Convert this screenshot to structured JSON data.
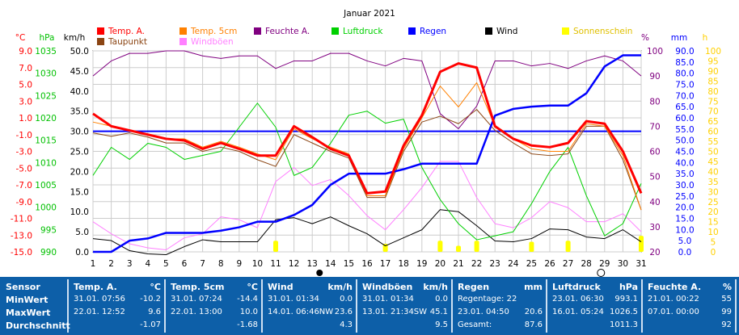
{
  "chart_data": {
    "type": "line",
    "title": "Januar 2021",
    "x": [
      1,
      2,
      3,
      4,
      5,
      6,
      7,
      8,
      9,
      10,
      11,
      12,
      13,
      14,
      15,
      16,
      17,
      18,
      19,
      20,
      21,
      22,
      23,
      24,
      25,
      26,
      27,
      28,
      29,
      30,
      31
    ],
    "axes": {
      "temp_c": {
        "label": "°C",
        "ticks": [
          "9.0",
          "7.0",
          "5.0",
          "3.0",
          "1.0",
          "-1.0",
          "-3.0",
          "-5.0",
          "-7.0",
          "-9.0",
          "-11.0",
          "-13.0",
          "-15.0"
        ],
        "range": [
          -15,
          9
        ],
        "color": "#ff0000"
      },
      "hpa": {
        "label": "hPa",
        "ticks": [
          "1035",
          "1030",
          "1025",
          "1020",
          "1015",
          "1010",
          "1005",
          "1000",
          "995",
          "990"
        ],
        "range": [
          990,
          1040
        ],
        "color": "#00c000"
      },
      "kmh": {
        "label": "km/h",
        "ticks": [
          "50.0",
          "45.0",
          "40.0",
          "35.0",
          "30.0",
          "25.0",
          "20.0",
          "15.0",
          "10.0",
          "5.0",
          "0.0"
        ],
        "range": [
          0,
          50
        ],
        "color": "#000000"
      },
      "pct": {
        "label": "%",
        "ticks": [
          "100",
          "90",
          "80",
          "70",
          "60",
          "50",
          "40",
          "30",
          "20"
        ],
        "range": [
          20,
          100
        ],
        "color": "#800080"
      },
      "mm": {
        "label": "mm",
        "ticks": [
          "90.0",
          "85.0",
          "80.0",
          "75.0",
          "70.0",
          "65.0",
          "60.0",
          "55.0",
          "50.0",
          "45.0",
          "40.0",
          "35.0",
          "30.0",
          "25.0",
          "20.0",
          "15.0",
          "10.0",
          "5.0",
          "0.0"
        ],
        "range": [
          0,
          90
        ],
        "color": "#0000ff"
      },
      "h": {
        "label": "h",
        "ticks": [
          "100",
          "95",
          "90",
          "85",
          "80",
          "75",
          "70",
          "65",
          "60",
          "55",
          "50",
          "45",
          "40",
          "35",
          "30",
          "25",
          "20",
          "15",
          "10",
          "5",
          "0"
        ],
        "range": [
          0,
          100
        ],
        "color": "#ffd000"
      }
    },
    "legend": [
      {
        "name": "Temp. A.",
        "color": "#ff0000"
      },
      {
        "name": "Temp. 5cm",
        "color": "#ff8000"
      },
      {
        "name": "Feuchte A.",
        "color": "#800080"
      },
      {
        "name": "Luftdruck",
        "color": "#00d000"
      },
      {
        "name": "Regen",
        "color": "#0000ff"
      },
      {
        "name": "Wind",
        "color": "#000000"
      },
      {
        "name": "Sonnenschein",
        "color": "#ffff00"
      },
      {
        "name": "Taupunkt",
        "color": "#8b4513"
      },
      {
        "name": "Windböen",
        "color": "#ff80ff"
      }
    ],
    "series": [
      {
        "name": "Temp. A.",
        "axis": "temp_c",
        "color": "#ff0000",
        "width": 3,
        "values": [
          1.5,
          0.0,
          -0.5,
          -1.0,
          -1.5,
          -1.7,
          -2.7,
          -2.0,
          -2.7,
          -3.5,
          -3.5,
          0.0,
          -1.3,
          -2.7,
          -3.5,
          -8.0,
          -7.8,
          -2.3,
          1.3,
          6.5,
          7.5,
          7.0,
          0.0,
          -1.5,
          -2.3,
          -2.5,
          -2.0,
          0.6,
          0.3,
          -3.0,
          -8.0
        ]
      },
      {
        "name": "Temp. 5cm",
        "axis": "temp_c",
        "color": "#ff8000",
        "width": 1,
        "values": [
          0.5,
          0.0,
          -0.5,
          -1.0,
          -1.5,
          -1.5,
          -2.5,
          -1.8,
          -2.5,
          -3.3,
          -4.0,
          -0.3,
          -1.5,
          -2.5,
          -3.3,
          -8.3,
          -8.3,
          -2.7,
          1.0,
          4.8,
          2.3,
          5.2,
          0.0,
          -1.5,
          -2.7,
          -3.0,
          -3.0,
          0.3,
          0.0,
          -3.5,
          -10.0
        ]
      },
      {
        "name": "Taupunkt",
        "axis": "temp_c",
        "color": "#8b4513",
        "width": 1,
        "values": [
          -0.8,
          -1.2,
          -0.8,
          -1.3,
          -2.0,
          -2.0,
          -3.0,
          -2.5,
          -3.0,
          -4.0,
          -4.8,
          -1.0,
          -2.0,
          -3.0,
          -3.8,
          -8.5,
          -8.5,
          -3.0,
          0.5,
          1.2,
          0.3,
          2.0,
          -0.5,
          -2.0,
          -3.3,
          -3.5,
          -3.3,
          0.0,
          0.0,
          -4.0,
          -10.0
        ]
      },
      {
        "name": "Luftdruck",
        "axis": "hpa",
        "color": "#00d000",
        "width": 1,
        "values": [
          1009,
          1016,
          1013,
          1017,
          1016,
          1013,
          1014,
          1015,
          1021,
          1027,
          1021,
          1009,
          1011,
          1017,
          1024,
          1025,
          1022,
          1023,
          1011,
          1003,
          997,
          993,
          994,
          995,
          1002,
          1010,
          1016,
          1004,
          994,
          997,
          1007
        ]
      },
      {
        "name": "Feuchte A.",
        "axis": "pct",
        "color": "#800080",
        "width": 1,
        "values": [
          90,
          96,
          99,
          99,
          100,
          100,
          98,
          97,
          98,
          98,
          93,
          96,
          96,
          99,
          99,
          96,
          94,
          97,
          96,
          75,
          69,
          78,
          96,
          96,
          94,
          95,
          93,
          96,
          98,
          96,
          90
        ]
      },
      {
        "name": "Regen",
        "axis": "mm",
        "color": "#0000ff",
        "width": 2.5,
        "values": [
          0,
          0,
          5.0,
          6.0,
          8.5,
          8.5,
          8.5,
          9.5,
          11.0,
          13.5,
          13.5,
          16.5,
          21.0,
          30.0,
          35.0,
          35.0,
          35.0,
          37.0,
          39.5,
          39.5,
          39.5,
          39.5,
          61.0,
          64.0,
          65.0,
          65.5,
          65.5,
          71.0,
          83.0,
          88.0,
          88.0
        ]
      },
      {
        "name": "Wind",
        "axis": "kmh",
        "color": "#000000",
        "width": 1,
        "values": [
          3.3,
          2.8,
          0.3,
          -0.5,
          -0.7,
          1.3,
          3.0,
          2.5,
          2.5,
          2.5,
          8.0,
          8.5,
          7.0,
          8.7,
          6.5,
          4.5,
          1.5,
          3.5,
          5.5,
          10.5,
          10.0,
          6.5,
          2.7,
          2.5,
          3.3,
          5.7,
          5.5,
          3.7,
          3.3,
          5.5,
          2.5
        ]
      },
      {
        "name": "Windböen",
        "axis": "kmh",
        "color": "#ff80ff",
        "width": 1,
        "values": [
          7.5,
          4.5,
          2.0,
          1.0,
          0.5,
          3.5,
          4.5,
          8.7,
          8.0,
          6.0,
          17.5,
          21.0,
          16.5,
          18.0,
          14.0,
          9.0,
          5.5,
          10.5,
          16.0,
          22.5,
          22.5,
          13.5,
          7.0,
          6.0,
          8.5,
          12.5,
          11.0,
          7.5,
          7.5,
          9.5,
          5.0
        ]
      },
      {
        "name": "Sonnenschein",
        "axis": "h",
        "color": "#ffff00",
        "type": "bar",
        "values": [
          0,
          0,
          0,
          0,
          0,
          0,
          0,
          0,
          0,
          0,
          5.5,
          0,
          0,
          0,
          0,
          0,
          4.0,
          0,
          0,
          5.5,
          3.0,
          5.5,
          0,
          0,
          5.0,
          0,
          5.5,
          0,
          0,
          0,
          8.0
        ]
      }
    ],
    "horizontal_line": {
      "axis": "kmh",
      "value": 30,
      "color": "#0000ff"
    },
    "grid": true,
    "legend_placement": "top"
  },
  "stats": [
    {
      "header": "Sensor",
      "rows": [
        "MinWert",
        "MaxWert",
        "Durchschnitt"
      ]
    },
    {
      "header": "Temp. A.",
      "unit": "°C",
      "rows": [
        [
          "31.01.  07:56",
          "-10.2"
        ],
        [
          "22.01.  12:52",
          "9.6"
        ],
        [
          "",
          "-1.07"
        ]
      ]
    },
    {
      "header": "Temp. 5cm",
      "unit": "°C",
      "rows": [
        [
          "31.01.  07:24",
          "-14.4"
        ],
        [
          "22.01.  13:00",
          "10.0"
        ],
        [
          "",
          "-1.68"
        ]
      ]
    },
    {
      "header": "Wind",
      "unit": "km/h",
      "rows": [
        [
          "31.01.  01:34",
          "0.0"
        ],
        [
          "14.01.  06:46NW",
          "23.6"
        ],
        [
          "",
          "4.3"
        ]
      ]
    },
    {
      "header": "Windböen",
      "unit": "km/h",
      "rows": [
        [
          "31.01.  01:34",
          "0.0"
        ],
        [
          "13.01.  21:34SW",
          "45.1"
        ],
        [
          "",
          "9.5"
        ]
      ]
    },
    {
      "header": "Regen",
      "unit": "mm",
      "rows": [
        [
          "Regentage: 22",
          ""
        ],
        [
          "23.01.  04:50",
          "20.6"
        ],
        [
          "Gesamt:",
          "87.6"
        ]
      ]
    },
    {
      "header": "Luftdruck",
      "unit": "hPa",
      "rows": [
        [
          "23.01.  06:30",
          "993.1"
        ],
        [
          "16.01.  05:24",
          "1026.5"
        ],
        [
          "",
          "1011.3"
        ]
      ]
    },
    {
      "header": "Feuchte A.",
      "unit": "%",
      "rows": [
        [
          "21.01.  00:22",
          "55"
        ],
        [
          "07.01.  00:00",
          "99"
        ],
        [
          "",
          "92"
        ]
      ]
    }
  ]
}
